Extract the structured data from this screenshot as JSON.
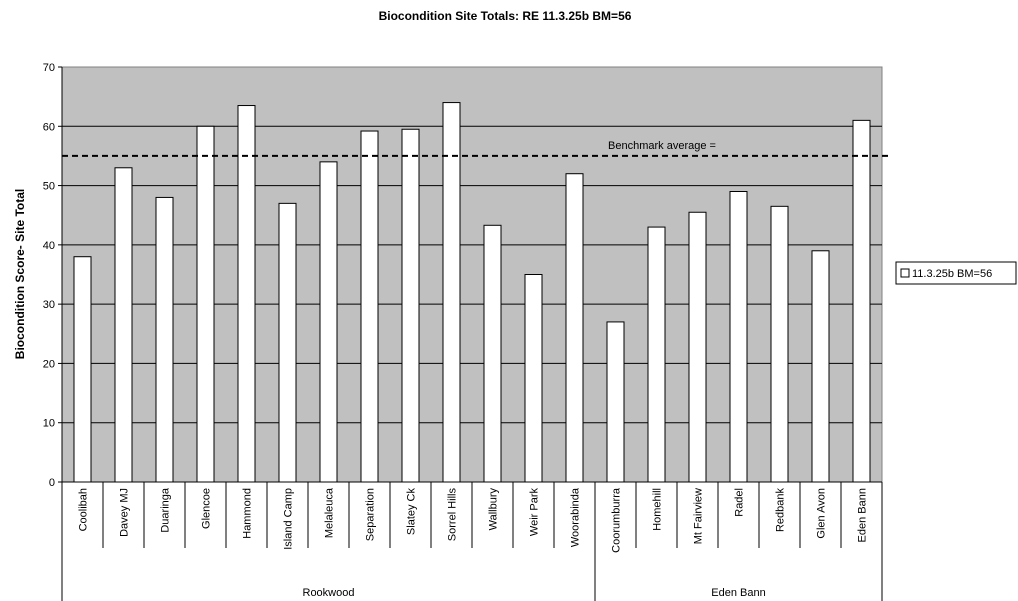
{
  "chart_data": {
    "type": "bar",
    "title": "Biocondition Site Totals:  RE 11.3.25b BM=56",
    "ylabel": "Biocondition Score- Site Total",
    "ylim": [
      0,
      70
    ],
    "yticks": [
      0,
      10,
      20,
      30,
      40,
      50,
      60,
      70
    ],
    "grid": true,
    "legend_position": "right",
    "categories": [
      "Coolibah",
      "Davey MJ",
      "Duaringa",
      "Glencoe",
      "Hammond",
      "Island Camp",
      "Melaleuca",
      "Separation",
      "Slatey Ck",
      "Sorrel Hills",
      "Wallbury",
      "Weir Park",
      "Woorabinda",
      "Coorumburra",
      "Homehill",
      "Mt Fairview",
      "Radel",
      "Redbank",
      "Glen Avon",
      "Eden Bann"
    ],
    "groups": [
      {
        "name": "Rookwood",
        "count": 13
      },
      {
        "name": "Eden Bann",
        "count": 7
      }
    ],
    "series": [
      {
        "name": "11.3.25b BM=56",
        "values": [
          38,
          53,
          48,
          60,
          63.5,
          47,
          54,
          59.2,
          59.5,
          64,
          43.3,
          35,
          52,
          27,
          43,
          45.5,
          49,
          46.5,
          39,
          61
        ]
      }
    ],
    "reference_line": {
      "label": "Benchmark average =",
      "value": 55
    },
    "colors": {
      "plot_bg": "#c0c0c0",
      "bar_fill": "#ffffff",
      "bar_stroke": "#000000",
      "grid": "#000000"
    }
  }
}
